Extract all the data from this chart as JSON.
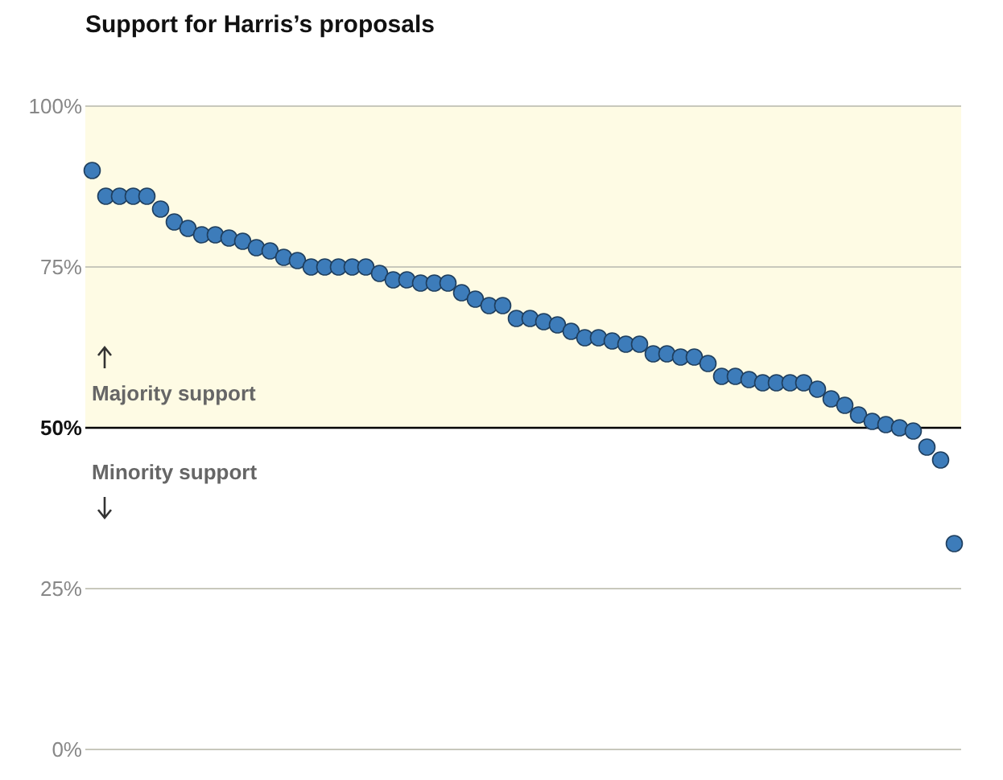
{
  "chart_data": {
    "type": "scatter",
    "title": "Support for Harris’s proposals",
    "categories": [
      null,
      null,
      null,
      null,
      null,
      null,
      null,
      null,
      null,
      null,
      null,
      null,
      null,
      null,
      null,
      null,
      null,
      null,
      null,
      null,
      null,
      null,
      null,
      null,
      null,
      null,
      null,
      null,
      null,
      null,
      null,
      null,
      null,
      null,
      null,
      null,
      null,
      null,
      null,
      null,
      null,
      null,
      null,
      null,
      null,
      null,
      null,
      null,
      null,
      null,
      null,
      null,
      null,
      null,
      null,
      null,
      null,
      null,
      null,
      null,
      null,
      null,
      null,
      null
    ],
    "values": [
      90,
      86,
      86,
      86,
      86,
      84,
      82,
      81,
      80,
      80,
      79.5,
      79,
      78,
      77.5,
      76.5,
      76,
      75,
      75,
      75,
      75,
      75,
      74,
      73,
      73,
      72.5,
      72.5,
      72.5,
      71,
      70,
      69,
      69,
      67,
      67,
      66.5,
      66,
      65,
      64,
      64,
      63.5,
      63,
      63,
      61.5,
      61.5,
      61,
      61,
      60,
      58,
      58,
      57.5,
      57,
      57,
      57,
      57,
      56,
      54.5,
      53.5,
      52,
      51,
      50.5,
      50,
      49.5,
      47,
      45,
      32
    ],
    "color": "#3d7cba",
    "marker": "circle",
    "ylim": [
      0,
      100
    ],
    "yticks": [
      {
        "value": 0,
        "label": "0%"
      },
      {
        "value": 25,
        "label": "25%"
      },
      {
        "value": 50,
        "label": "50%"
      },
      {
        "value": 75,
        "label": "75%"
      },
      {
        "value": 100,
        "label": "100%"
      }
    ],
    "grid": "y",
    "bands": [
      {
        "axis": "y",
        "from": 50,
        "to": 100,
        "label": "Majority support",
        "color": "#fefbe4"
      }
    ],
    "ref_lines": [
      {
        "axis": "y",
        "value": 50,
        "color": "#000000"
      }
    ],
    "annotations": [
      "Minority support"
    ]
  }
}
